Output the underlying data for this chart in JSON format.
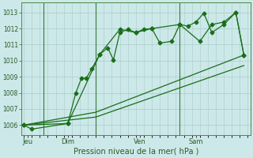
{
  "xlabel": "Pression niveau de la mer( hPa )",
  "background_color": "#cce8e8",
  "grid_color": "#aacccc",
  "line_color": "#1a6e1a",
  "spine_color": "#4a8a4a",
  "ylim": [
    1005.4,
    1013.6
  ],
  "yticks": [
    1006,
    1007,
    1008,
    1009,
    1010,
    1011,
    1012,
    1013
  ],
  "xlim": [
    -0.3,
    28.3
  ],
  "day_labels": [
    "Jeu",
    "Dim",
    "Ven",
    "Sam"
  ],
  "day_positions": [
    0.5,
    5.5,
    14.5,
    21.5
  ],
  "vline_positions": [
    2.5,
    9.0,
    19.5
  ],
  "series1_x": [
    0.0,
    1.0,
    5.5,
    6.5,
    7.2,
    7.8,
    8.5,
    9.5,
    10.5,
    11.2,
    12.0,
    13.0,
    14.0,
    15.0,
    16.0,
    17.0,
    18.5,
    19.5,
    20.5,
    21.5,
    22.5,
    23.5,
    25.0,
    26.5,
    27.5
  ],
  "series1_y": [
    1006.0,
    1005.75,
    1006.1,
    1008.0,
    1008.9,
    1008.9,
    1009.5,
    1010.4,
    1010.8,
    1010.05,
    1011.75,
    1011.95,
    1011.75,
    1011.95,
    1012.0,
    1011.1,
    1011.2,
    1012.25,
    1012.15,
    1012.4,
    1012.95,
    1011.75,
    1012.25,
    1013.0,
    1010.35
  ],
  "series2_x": [
    0.0,
    9.0,
    27.5
  ],
  "series2_y": [
    1006.0,
    1006.8,
    1010.35
  ],
  "series3_x": [
    0.0,
    9.0,
    27.5
  ],
  "series3_y": [
    1006.0,
    1006.5,
    1009.7
  ],
  "series4_x": [
    0.0,
    5.5,
    9.5,
    12.0,
    14.0,
    16.0,
    19.5,
    22.0,
    23.5,
    25.0,
    26.5,
    27.5
  ],
  "series4_y": [
    1006.0,
    1006.1,
    1010.4,
    1011.95,
    1011.75,
    1012.0,
    1012.25,
    1011.2,
    1012.25,
    1012.4,
    1013.0,
    1010.35
  ]
}
